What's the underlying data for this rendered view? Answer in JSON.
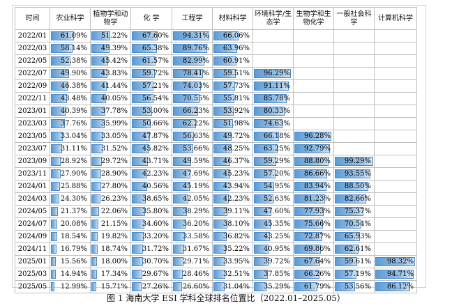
{
  "caption": "图 1 海南大学 ESI 学科全球排名位置比（2022.01–2025.05）",
  "table": {
    "headers": [
      "时间",
      "农业科学",
      "植物学和动物学",
      "化 学",
      "工程学",
      "材料科学",
      "环境科学/生态学",
      "生物学和生物化学",
      "一般社会科学",
      "计算机科学"
    ],
    "rows": [
      {
        "date": "2022/01",
        "cells": [
          "61.09%",
          "51.22%",
          "67.60%",
          "94.31%",
          "66.06%",
          "",
          "",
          "",
          ""
        ]
      },
      {
        "date": "2022/03",
        "cells": [
          "58.14%",
          "49.39%",
          "65.38%",
          "89.76%",
          "63.96%",
          "",
          "",
          "",
          ""
        ]
      },
      {
        "date": "2022/05",
        "cells": [
          "52.38%",
          "45.42%",
          "61.57%",
          "82.99%",
          "60.91%",
          "",
          "",
          "",
          ""
        ]
      },
      {
        "date": "2022/07",
        "cells": [
          "49.90%",
          "43.83%",
          "59.72%",
          "78.41%",
          "59.51%",
          "96.29%",
          "",
          "",
          ""
        ]
      },
      {
        "date": "2022/09",
        "cells": [
          "46.38%",
          "41.44%",
          "57.21%",
          "74.03%",
          "57.73%",
          "91.11%",
          "",
          "",
          ""
        ]
      },
      {
        "date": "2022/11",
        "cells": [
          "43.48%",
          "40.05%",
          "56.54%",
          "70.55%",
          "55.81%",
          "85.78%",
          "",
          "",
          ""
        ]
      },
      {
        "date": "2023/01",
        "cells": [
          "40.39%",
          "37.78%",
          "53.00%",
          "66.23%",
          "53.92%",
          "80.33%",
          "",
          "",
          ""
        ]
      },
      {
        "date": "2023/03",
        "cells": [
          "37.76%",
          "35.99%",
          "50.66%",
          "62.22%",
          "51.98%",
          "74.63%",
          "",
          "",
          ""
        ]
      },
      {
        "date": "2023/05",
        "cells": [
          "33.04%",
          "33.05%",
          "47.87%",
          "56.63%",
          "49.72%",
          "66.18%",
          "96.28%",
          "",
          ""
        ]
      },
      {
        "date": "2023/07",
        "cells": [
          "31.11%",
          "31.52%",
          "45.82%",
          "53.66%",
          "48.25%",
          "63.25%",
          "92.79%",
          "",
          ""
        ]
      },
      {
        "date": "2023/09",
        "cells": [
          "28.92%",
          "29.72%",
          "43.71%",
          "49.59%",
          "46.37%",
          "59.29%",
          "88.80%",
          "99.29%",
          ""
        ]
      },
      {
        "date": "2023/11",
        "cells": [
          "27.90%",
          "28.90%",
          "42.23%",
          "47.69%",
          "45.23%",
          "57.20%",
          "86.66%",
          "93.55%",
          ""
        ]
      },
      {
        "date": "2024/01",
        "cells": [
          "25.88%",
          "27.80%",
          "40.56%",
          "45.19%",
          "43.94%",
          "54.95%",
          "83.94%",
          "88.50%",
          ""
        ]
      },
      {
        "date": "2024/03",
        "cells": [
          "24.30%",
          "26.23%",
          "38.65%",
          "42.05%",
          "42.23%",
          "52.63%",
          "81.23%",
          "82.66%",
          ""
        ]
      },
      {
        "date": "2024/05",
        "cells": [
          "21.37%",
          "22.06%",
          "35.80%",
          "38.29%",
          "39.11%",
          "47.60%",
          "77.93%",
          "75.37%",
          ""
        ]
      },
      {
        "date": "2024/07",
        "cells": [
          "20.08%",
          "21.15%",
          "34.60%",
          "36.20%",
          "38.10%",
          "45.35%",
          "75.66%",
          "70.54%",
          ""
        ]
      },
      {
        "date": "2024/09",
        "cells": [
          "18.54%",
          "19.82%",
          "33.20%",
          "33.58%",
          "36.82%",
          "43.25%",
          "72.87%",
          "65.93%",
          ""
        ]
      },
      {
        "date": "2024/11",
        "cells": [
          "16.79%",
          "18.74%",
          "31.72%",
          "31.67%",
          "35.22%",
          "40.95%",
          "69.86%",
          "62.61%",
          ""
        ]
      },
      {
        "date": "2025/01",
        "cells": [
          "15.56%",
          "18.00%",
          "30.70%",
          "29.71%",
          "33.95%",
          "39.72%",
          "67.64%",
          "59.61%",
          "98.32%"
        ]
      },
      {
        "date": "2025/03",
        "cells": [
          "14.94%",
          "17.34%",
          "29.67%",
          "28.46%",
          "32.51%",
          "37.85%",
          "66.26%",
          "57.19%",
          "94.71%"
        ]
      },
      {
        "date": "2025/05",
        "cells": [
          "12.99%",
          "15.71%",
          "27.26%",
          "26.60%",
          "31.04%",
          "35.29%",
          "61.79%",
          "53.56%",
          "86.12%"
        ]
      }
    ]
  },
  "colors": {
    "bar_start": "#5b9bd5",
    "bar_end": "#d2e5f5",
    "bar_border": "#4a8ac8",
    "grid": "#bfbfbf"
  }
}
